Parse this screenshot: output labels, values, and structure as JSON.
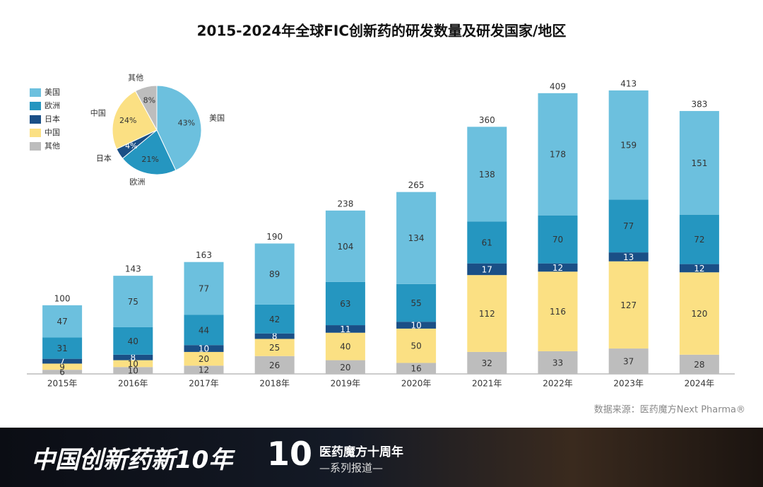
{
  "chart_data": [
    {
      "type": "stacked-bar",
      "title": "2015-2024年全球FIC创新药的研发数量及研发国家/地区",
      "categories": [
        "2015年",
        "2016年",
        "2017年",
        "2018年",
        "2019年",
        "2020年",
        "2021年",
        "2022年",
        "2023年",
        "2024年"
      ],
      "series": [
        {
          "name": "其他",
          "color": "#bdbdbd",
          "values": [
            6,
            10,
            12,
            26,
            20,
            16,
            32,
            33,
            37,
            28
          ]
        },
        {
          "name": "中国",
          "color": "#fbe083",
          "values": [
            9,
            10,
            20,
            25,
            40,
            50,
            112,
            116,
            127,
            120
          ]
        },
        {
          "name": "日本",
          "color": "#1a4f86",
          "values": [
            7,
            8,
            10,
            8,
            11,
            10,
            17,
            12,
            13,
            12
          ]
        },
        {
          "name": "欧洲",
          "color": "#2596c0",
          "values": [
            31,
            40,
            44,
            42,
            63,
            55,
            61,
            70,
            77,
            72
          ]
        },
        {
          "name": "美国",
          "color": "#6cc0de",
          "values": [
            47,
            75,
            77,
            89,
            104,
            134,
            138,
            178,
            159,
            151
          ]
        }
      ],
      "totals": [
        100,
        143,
        163,
        190,
        238,
        265,
        360,
        409,
        413,
        383
      ],
      "ylim": [
        0,
        450
      ]
    },
    {
      "type": "pie",
      "categories": [
        "美国",
        "欧洲",
        "日本",
        "中国",
        "其他"
      ],
      "values": [
        43,
        21,
        4,
        24,
        8
      ],
      "value_labels": [
        "43%",
        "21%",
        "4%",
        "24%",
        "8%"
      ],
      "colors": [
        "#6cc0de",
        "#2596c0",
        "#1a4f86",
        "#fbe083",
        "#bdbdbd"
      ]
    }
  ],
  "source": "数据来源：医药魔方Next Pharma®",
  "banner": {
    "title": "中国创新药新10年",
    "logo": "10",
    "subtitle": "医药魔方十周年",
    "series": "—系列报道—"
  }
}
